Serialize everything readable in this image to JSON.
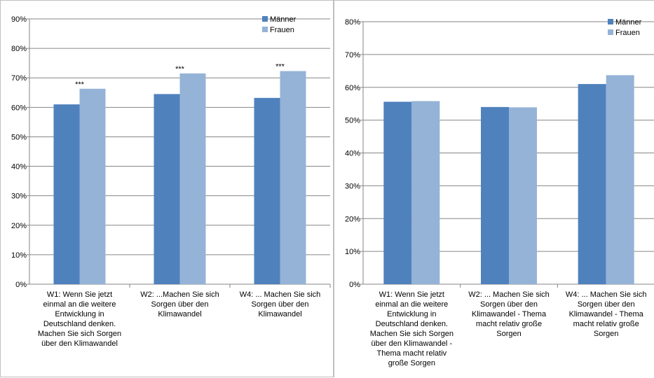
{
  "colors": {
    "maenner": "#4f81bd",
    "frauen": "#95b3d7",
    "grid": "#868686",
    "axis": "#868686"
  },
  "chart_data": [
    {
      "type": "bar",
      "ylim": [
        0,
        0.9
      ],
      "yticks": [
        "0%",
        "10%",
        "20%",
        "30%",
        "40%",
        "50%",
        "60%",
        "70%",
        "80%",
        "90%"
      ],
      "grid": true,
      "legend_position": "top-right",
      "categories": [
        [
          "W1: Wenn Sie jetzt",
          "einmal an die weitere",
          "Entwicklung in",
          "Deutschland denken.",
          "Machen Sie sich Sorgen",
          "über den Klimawandel"
        ],
        [
          "W2: ...Machen Sie sich",
          "Sorgen über den",
          "Klimawandel"
        ],
        [
          "W4: ... Machen Sie sich",
          "Sorgen über den",
          "Klimawandel"
        ]
      ],
      "series": [
        {
          "name": "Männer",
          "values": [
            0.61,
            0.645,
            0.632
          ]
        },
        {
          "name": "Frauen",
          "values": [
            0.663,
            0.715,
            0.723
          ]
        }
      ],
      "annotations": [
        "***",
        "***",
        "***"
      ]
    },
    {
      "type": "bar",
      "ylim": [
        0,
        0.8
      ],
      "yticks": [
        "0%",
        "10%",
        "20%",
        "30%",
        "40%",
        "50%",
        "60%",
        "70%",
        "80%"
      ],
      "grid": true,
      "legend_position": "top-right",
      "categories": [
        [
          "W1: Wenn Sie jetzt",
          "einmal an die weitere",
          "Entwicklung in",
          "Deutschland denken.",
          "Machen Sie sich Sorgen",
          "über den Klimawandel -",
          "Thema macht relativ",
          "große Sorgen"
        ],
        [
          "W2: ... Machen Sie sich",
          "Sorgen über den",
          "Klimawandel - Thema",
          "macht relativ große",
          "Sorgen"
        ],
        [
          "W4: ... Machen Sie sich",
          "Sorgen über den",
          "Klimawandel - Thema",
          "macht relativ große",
          "Sorgen"
        ]
      ],
      "series": [
        {
          "name": "Männer",
          "values": [
            0.556,
            0.54,
            0.61
          ]
        },
        {
          "name": "Frauen",
          "values": [
            0.558,
            0.539,
            0.637
          ]
        }
      ],
      "annotations": [
        "",
        "",
        ""
      ]
    }
  ]
}
